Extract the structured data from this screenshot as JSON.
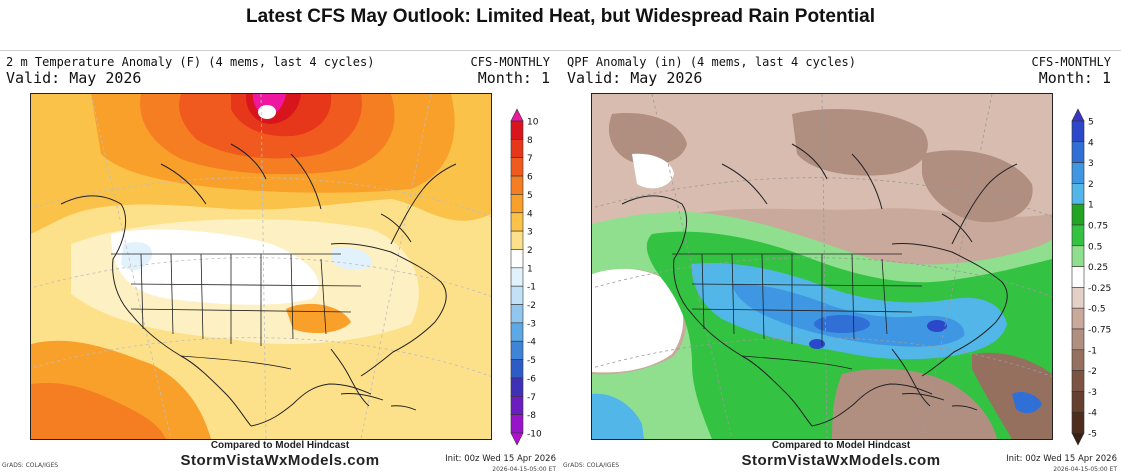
{
  "page_title": "Latest CFS May Outlook: Limited Heat, but Widespread Rain Potential",
  "credit_line1": "Compared to Model Hindcast",
  "credit_line2": "StormVistaWxModels.com",
  "grads_tag": "GrADS: COLA/IGES",
  "init_line": "Init: 00z Wed 15 Apr 2026",
  "init_stamp": "2026-04-15-05:00 ET",
  "panels": [
    {
      "id": "temperature",
      "header": "2 m Temperature Anomaly (F) (4 mems, last 4 cycles)",
      "model": "CFS-MONTHLY",
      "valid": "Valid: May 2026",
      "month": "Month: 1",
      "colorbar": {
        "labels": [
          "10",
          "8",
          "7",
          "6",
          "5",
          "4",
          "3",
          "2",
          "1",
          "-1",
          "-2",
          "-3",
          "-4",
          "-5",
          "-6",
          "-7",
          "-8",
          "-10"
        ],
        "colors": [
          "#f017a0",
          "#d8141c",
          "#e7371b",
          "#f05a1e",
          "#f57e22",
          "#f9a02b",
          "#fbc24a",
          "#fde18a",
          "#ffffff",
          "#e2f2fc",
          "#c2e0f6",
          "#92c6ef",
          "#5da9e6",
          "#3f84d7",
          "#2e5cc6",
          "#3f31b7",
          "#6b1dc0",
          "#9714c9",
          "#b40fd0"
        ]
      }
    },
    {
      "id": "precipitation",
      "header": "QPF Anomaly (in) (4 mems, last 4 cycles)",
      "model": "CFS-MONTHLY",
      "valid": "Valid: May 2026",
      "month": "Month: 1",
      "colorbar": {
        "labels": [
          "5",
          "4",
          "3",
          "2",
          "1",
          "0.75",
          "0.5",
          "0.25",
          "-0.25",
          "-0.5",
          "-0.75",
          "-1",
          "-2",
          "-3",
          "-4",
          "-5"
        ],
        "colors": [
          "#3a35c9",
          "#2a48c9",
          "#2f6fd6",
          "#3f97e4",
          "#52b6e8",
          "#22a524",
          "#34c242",
          "#8fdf8e",
          "#ffffff",
          "#e3d1c8",
          "#c9a99b",
          "#b08f80",
          "#95705f",
          "#7d5443",
          "#66402f",
          "#4f2d1e",
          "#3b1f13"
        ]
      }
    }
  ]
}
